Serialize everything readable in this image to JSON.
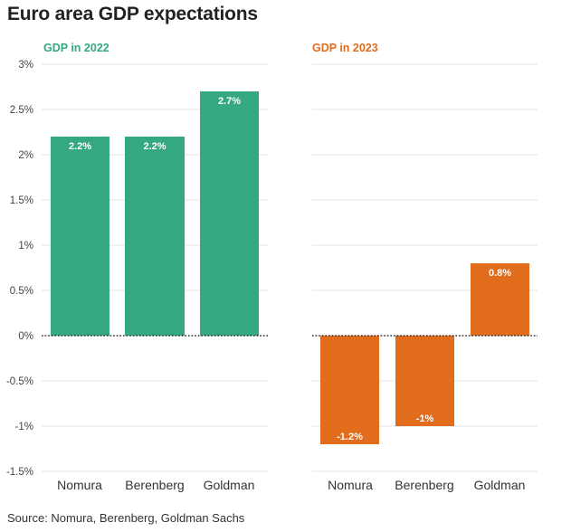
{
  "header": {
    "title": "Euro area GDP expectations",
    "source": "Source: Nomura, Berenberg, Goldman Sachs"
  },
  "chart_data": [
    {
      "type": "bar",
      "title": "GDP in 2022",
      "categories": [
        "Nomura",
        "Berenberg",
        "Goldman"
      ],
      "values": [
        2.2,
        2.2,
        2.7
      ],
      "value_labels": [
        "2.2%",
        "2.2%",
        "2.7%"
      ],
      "ylim": [
        -1.5,
        3
      ],
      "yticks": [
        -1.5,
        -1,
        -0.5,
        0,
        0.5,
        1,
        1.5,
        2,
        2.5,
        3
      ],
      "ytick_labels": [
        "-1.5%",
        "-1%",
        "-0.5%",
        "0%",
        "0.5%",
        "1%",
        "1.5%",
        "2%",
        "2.5%",
        "3%"
      ],
      "color": "#33a883",
      "grid": true,
      "zero_line": "dotted"
    },
    {
      "type": "bar",
      "title": "GDP in 2023",
      "categories": [
        "Nomura",
        "Berenberg",
        "Goldman"
      ],
      "values": [
        -1.2,
        -1,
        0.8
      ],
      "value_labels": [
        "-1.2%",
        "-1%",
        "0.8%"
      ],
      "ylim": [
        -1.5,
        3
      ],
      "color": "#e06c1c",
      "grid": true,
      "zero_line": "dotted"
    }
  ]
}
